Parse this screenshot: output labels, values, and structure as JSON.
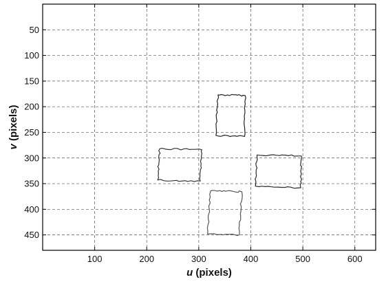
{
  "chart_data": {
    "type": "line",
    "xlabel_var": "u",
    "xlabel_unit": " (pixels)",
    "ylabel_var": "v",
    "ylabel_unit": " (pixels)",
    "xlim": [
      0,
      640
    ],
    "ylim": [
      0,
      480
    ],
    "y_inverted": true,
    "grid": true,
    "xticks": [
      100,
      200,
      300,
      400,
      500,
      600
    ],
    "yticks": [
      50,
      100,
      150,
      200,
      250,
      300,
      350,
      400,
      450
    ],
    "xgrid": [
      100,
      200,
      300,
      400,
      500,
      600
    ],
    "ygrid": [
      50,
      100,
      150,
      200,
      250,
      300,
      350,
      400,
      450
    ],
    "series": [
      {
        "color": "#222222",
        "corners": [
          [
            337,
            177
          ],
          [
            389,
            178
          ],
          [
            388,
            258
          ],
          [
            333,
            256
          ]
        ]
      },
      {
        "color": "#333333",
        "corners": [
          [
            225,
            282
          ],
          [
            306,
            284
          ],
          [
            303,
            345
          ],
          [
            221,
            343
          ]
        ]
      },
      {
        "color": "#2a2a2a",
        "corners": [
          [
            412,
            294
          ],
          [
            497,
            296
          ],
          [
            496,
            358
          ],
          [
            409,
            355
          ]
        ]
      },
      {
        "color": "#555555",
        "corners": [
          [
            323,
            364
          ],
          [
            383,
            366
          ],
          [
            378,
            450
          ],
          [
            317,
            448
          ]
        ]
      }
    ]
  }
}
